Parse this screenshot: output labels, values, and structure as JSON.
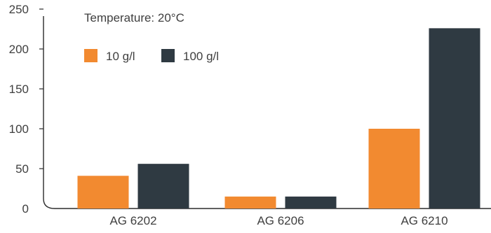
{
  "chart_data": {
    "type": "bar",
    "title": "",
    "annotation": "Temperature: 20°C",
    "xlabel": "",
    "ylabel": "",
    "categories": [
      "AG 6202",
      "AG 6206",
      "AG 6210"
    ],
    "series": [
      {
        "name": "10 g/l",
        "color": "#f28a30",
        "values": [
          41,
          15,
          100
        ]
      },
      {
        "name": "100 g/l",
        "color": "#2f3a42",
        "values": [
          56,
          15,
          226
        ]
      }
    ],
    "yticks": [
      0,
      50,
      100,
      150,
      200,
      250
    ],
    "ylim": [
      0,
      250
    ],
    "grid": false,
    "legend": "top-left"
  }
}
